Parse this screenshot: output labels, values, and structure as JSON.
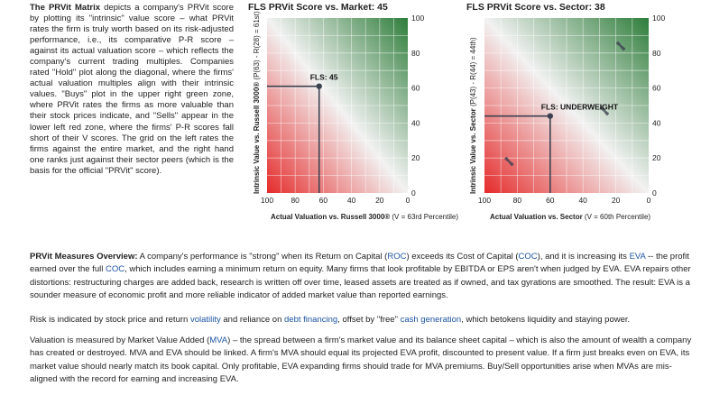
{
  "intro": {
    "heading": "The PRVit Matrix",
    "text": " depicts a company's PRVit score by plotting its \"intrinsic\" value score – what PRVit rates the firm is truly worth based on its risk-adjusted performance, i.e., its comparative P-R score – against its actual valuation score – which reflects the company's current trading multiples. Companies rated \"Hold\" plot along the diagonal, where the firms' actual valuation multiples align with their intrinsic values. \"Buys\" plot in the upper right green zone, where PRVit rates the firms as more valuable than their stock prices indicate, and \"Sells\" appear in the lower left red zone, where the firms' P-R scores fall short of their V scores. The grid on the left rates the firms against the entire market, and the right hand one ranks just against their sector peers (which is the basis for the official \"PRVit\" score)."
  },
  "chart_data": [
    {
      "type": "scatter",
      "title": "FLS PRVit Score vs. Market: 45",
      "xlabel_bold": "Actual Valuation vs. Russell 3000®",
      "xlabel_rest": " (V = 63rd Percentile)",
      "ylabel_bold": "Intrinsic Value vs. Russell 3000®",
      "ylabel_rest": " (P(63) - R(28) = 61st)",
      "x_ticks": [
        "100",
        "80",
        "60",
        "40",
        "20",
        "0"
      ],
      "y_ticks": [
        "100",
        "80",
        "60",
        "40",
        "20",
        "0"
      ],
      "xlim": [
        100,
        0
      ],
      "ylim": [
        0,
        100
      ],
      "grid": true,
      "points": [
        {
          "label": "FLS: 45",
          "x": 63,
          "y": 61
        }
      ],
      "colors": {
        "buy": "#2e7d3a",
        "sell": "#e52b2b",
        "hold": "#f2f2f2",
        "marker": "#3c4250"
      }
    },
    {
      "type": "scatter",
      "title": "FLS PRVit Score vs. Sector: 38",
      "xlabel_bold": "Actual Valuation vs. Sector",
      "xlabel_rest": " (V = 60th Percentile)",
      "ylabel_bold": "Intrinsic Value vs. Sector",
      "ylabel_rest": " (P(43) - R(44) = 44th)",
      "x_ticks": [
        "100",
        "80",
        "60",
        "40",
        "20",
        "0"
      ],
      "y_ticks": [
        "100",
        "80",
        "60",
        "40",
        "20",
        "0"
      ],
      "xlim": [
        100,
        0
      ],
      "ylim": [
        0,
        100
      ],
      "grid": true,
      "points": [
        {
          "label": "FLS: UNDERWEIGHT",
          "x": 60,
          "y": 44
        }
      ],
      "peers": [
        {
          "x": 27,
          "y": 47
        },
        {
          "x": 85,
          "y": 18
        },
        {
          "x": 17,
          "y": 84
        }
      ],
      "colors": {
        "buy": "#2e7d3a",
        "sell": "#e52b2b",
        "hold": "#f2f2f2",
        "marker": "#3c4250"
      }
    }
  ],
  "overview": {
    "heading": "PRVit Measures Overview:",
    "t1": " A company's performance is \"strong\" when its Return on Capital (",
    "roc": "ROC",
    "t2": ") exceeds its Cost of Capital (",
    "coc1": "COC",
    "t3": "), and it is increasing its ",
    "eva": "EVA",
    "t4": " -- the profit earned over the full ",
    "coc2": "COC",
    "t5": ", which includes earning a minimum return on equity. Many firms that look profitable by EBITDA or EPS aren't when judged by EVA. EVA repairs other distortions: restructuring charges are added back, research is written off over time, leased assets are treated as if owned, and tax gyrations are smoothed. The result: EVA is a sounder measure of economic profit and more reliable indicator of added market value than reported earnings."
  },
  "risk": {
    "t1": "Risk is indicated by stock price and return ",
    "volatility": "volatility",
    "t2": " and reliance on ",
    "debt": "debt financing",
    "t3": ", offset by \"free\" ",
    "cash": "cash generation",
    "t4": ", which betokens liquidity and staying power."
  },
  "valuation": {
    "t1": "Valuation is measured by Market Value Added (",
    "mva": "MVA",
    "t2": ") – the spread between a firm's market value and its balance sheet capital – which is also the amount of wealth a company has created or destroyed. MVA and EVA should be linked. A firm's MVA should equal its projected EVA profit, discounted to present value. If a firm just breaks even on EVA, its market value should nearly match its book capital. Only profitable, EVA expanding firms should trade for MVA premiums. Buy/Sell opportunities arise when MVAs are mis-aligned with the record for earning and increasing EVA."
  }
}
